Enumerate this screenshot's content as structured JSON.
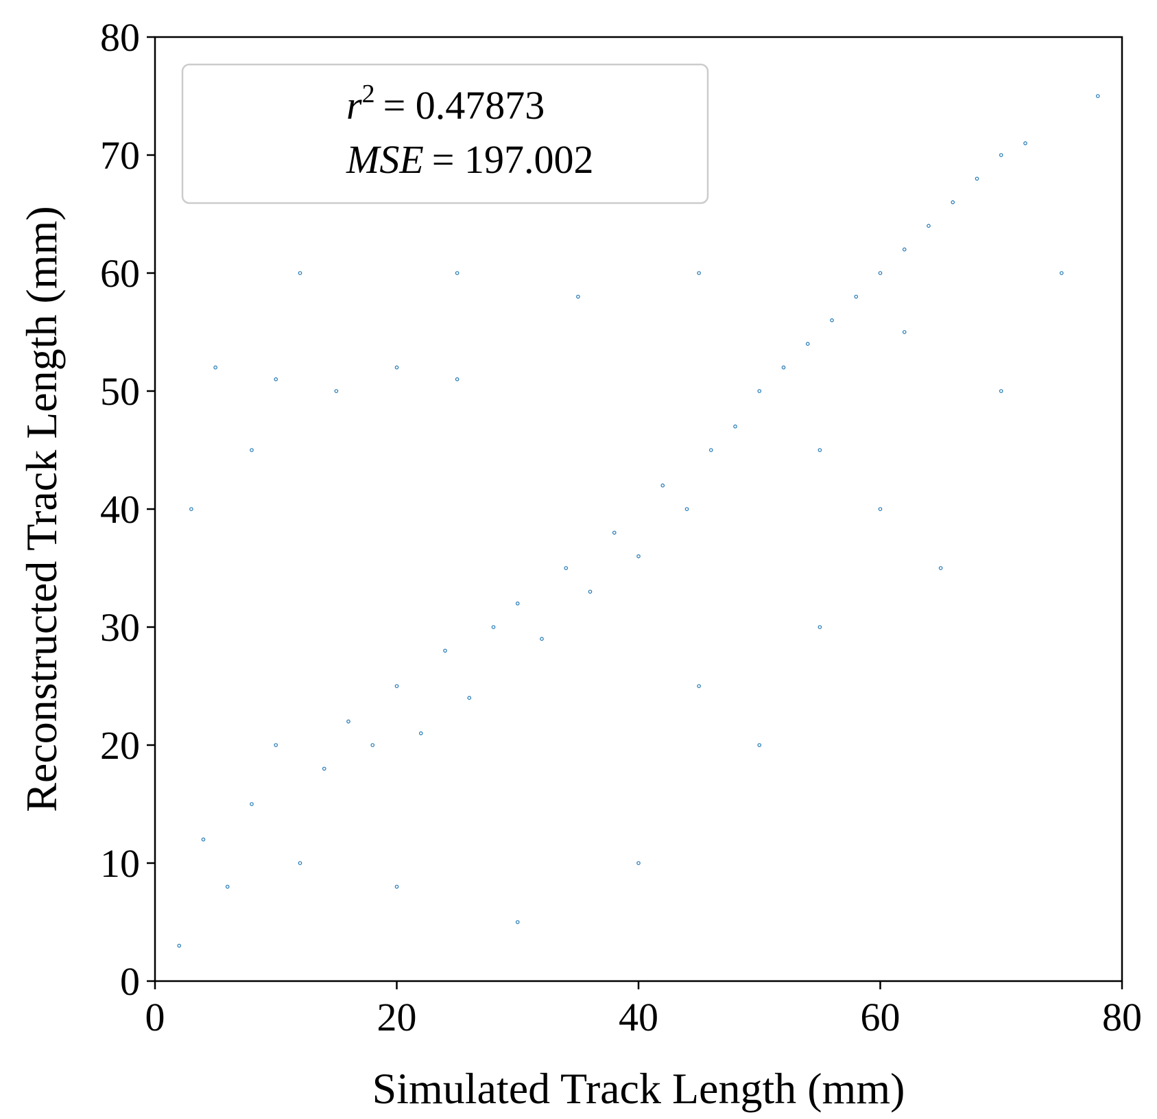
{
  "chart_data": {
    "type": "scatter",
    "xlabel": "Simulated Track Length (mm)",
    "ylabel": "Reconstructed Track Length (mm)",
    "xlim": [
      0,
      80
    ],
    "ylim": [
      0,
      80
    ],
    "xticks": [
      "0",
      "20",
      "40",
      "60",
      "80"
    ],
    "yticks": [
      "0",
      "10",
      "20",
      "30",
      "40",
      "50",
      "60",
      "70",
      "80"
    ],
    "grid": false,
    "legend_position": "top-left",
    "annotations": {
      "r2_symbol": "r",
      "r2_exponent": "2",
      "r2_value": "= 0.47873",
      "mse_symbol": "MSE",
      "mse_value": "= 197.002"
    },
    "series": [
      {
        "color": "#1f77b4",
        "marker": "small hollow circle",
        "points": [
          [
            2,
            3
          ],
          [
            4,
            12
          ],
          [
            6,
            8
          ],
          [
            8,
            15
          ],
          [
            10,
            20
          ],
          [
            12,
            10
          ],
          [
            14,
            18
          ],
          [
            16,
            22
          ],
          [
            18,
            20
          ],
          [
            20,
            25
          ],
          [
            22,
            21
          ],
          [
            24,
            28
          ],
          [
            26,
            24
          ],
          [
            28,
            30
          ],
          [
            30,
            32
          ],
          [
            32,
            29
          ],
          [
            34,
            35
          ],
          [
            36,
            33
          ],
          [
            38,
            38
          ],
          [
            40,
            36
          ],
          [
            42,
            42
          ],
          [
            44,
            40
          ],
          [
            46,
            45
          ],
          [
            48,
            47
          ],
          [
            50,
            50
          ],
          [
            52,
            52
          ],
          [
            54,
            54
          ],
          [
            56,
            56
          ],
          [
            58,
            58
          ],
          [
            60,
            60
          ],
          [
            62,
            62
          ],
          [
            64,
            64
          ],
          [
            66,
            66
          ],
          [
            68,
            68
          ],
          [
            70,
            70
          ],
          [
            72,
            71
          ],
          [
            5,
            52
          ],
          [
            10,
            51
          ],
          [
            15,
            50
          ],
          [
            20,
            52
          ],
          [
            25,
            51
          ],
          [
            3,
            40
          ],
          [
            8,
            45
          ],
          [
            12,
            60
          ],
          [
            25,
            60
          ],
          [
            35,
            58
          ],
          [
            45,
            60
          ],
          [
            40,
            10
          ],
          [
            50,
            20
          ],
          [
            55,
            30
          ],
          [
            60,
            40
          ],
          [
            65,
            35
          ],
          [
            70,
            50
          ],
          [
            75,
            60
          ],
          [
            78,
            75
          ],
          [
            30,
            5
          ],
          [
            20,
            8
          ],
          [
            45,
            25
          ],
          [
            55,
            45
          ],
          [
            62,
            55
          ]
        ]
      }
    ]
  }
}
